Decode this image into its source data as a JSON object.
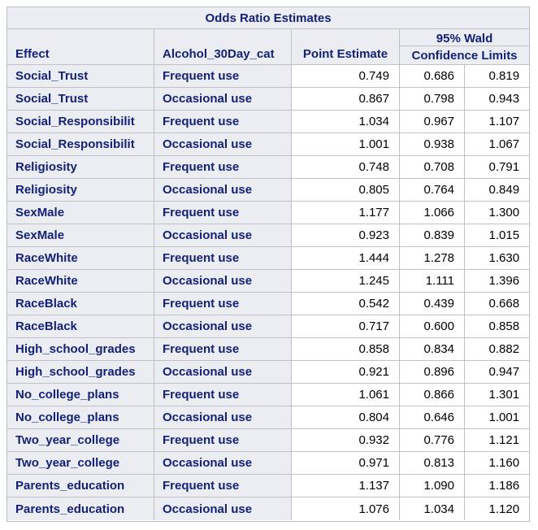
{
  "table": {
    "title": "Odds Ratio Estimates",
    "headers": {
      "effect": "Effect",
      "category": "Alcohol_30Day_cat",
      "point_estimate": "Point Estimate",
      "ci_top": "95% Wald",
      "ci_bottom": "Confidence Limits"
    },
    "rows": [
      {
        "effect": "Social_Trust",
        "category": "Frequent use",
        "estimate": "0.749",
        "lower": "0.686",
        "upper": "0.819"
      },
      {
        "effect": "Social_Trust",
        "category": "Occasional use",
        "estimate": "0.867",
        "lower": "0.798",
        "upper": "0.943"
      },
      {
        "effect": "Social_Responsibilit",
        "category": "Frequent use",
        "estimate": "1.034",
        "lower": "0.967",
        "upper": "1.107"
      },
      {
        "effect": "Social_Responsibilit",
        "category": "Occasional use",
        "estimate": "1.001",
        "lower": "0.938",
        "upper": "1.067"
      },
      {
        "effect": "Religiosity",
        "category": "Frequent use",
        "estimate": "0.748",
        "lower": "0.708",
        "upper": "0.791"
      },
      {
        "effect": "Religiosity",
        "category": "Occasional use",
        "estimate": "0.805",
        "lower": "0.764",
        "upper": "0.849"
      },
      {
        "effect": "SexMale",
        "category": "Frequent use",
        "estimate": "1.177",
        "lower": "1.066",
        "upper": "1.300"
      },
      {
        "effect": "SexMale",
        "category": "Occasional use",
        "estimate": "0.923",
        "lower": "0.839",
        "upper": "1.015"
      },
      {
        "effect": "RaceWhite",
        "category": "Frequent use",
        "estimate": "1.444",
        "lower": "1.278",
        "upper": "1.630"
      },
      {
        "effect": "RaceWhite",
        "category": "Occasional use",
        "estimate": "1.245",
        "lower": "1.111",
        "upper": "1.396"
      },
      {
        "effect": "RaceBlack",
        "category": "Frequent use",
        "estimate": "0.542",
        "lower": "0.439",
        "upper": "0.668"
      },
      {
        "effect": "RaceBlack",
        "category": "Occasional use",
        "estimate": "0.717",
        "lower": "0.600",
        "upper": "0.858"
      },
      {
        "effect": "High_school_grades",
        "category": "Frequent use",
        "estimate": "0.858",
        "lower": "0.834",
        "upper": "0.882"
      },
      {
        "effect": "High_school_grades",
        "category": "Occasional use",
        "estimate": "0.921",
        "lower": "0.896",
        "upper": "0.947"
      },
      {
        "effect": "No_college_plans",
        "category": "Frequent use",
        "estimate": "1.061",
        "lower": "0.866",
        "upper": "1.301"
      },
      {
        "effect": "No_college_plans",
        "category": "Occasional use",
        "estimate": "0.804",
        "lower": "0.646",
        "upper": "1.001"
      },
      {
        "effect": "Two_year_college",
        "category": "Frequent use",
        "estimate": "0.932",
        "lower": "0.776",
        "upper": "1.121"
      },
      {
        "effect": "Two_year_college",
        "category": "Occasional use",
        "estimate": "0.971",
        "lower": "0.813",
        "upper": "1.160"
      },
      {
        "effect": "Parents_education",
        "category": "Frequent use",
        "estimate": "1.137",
        "lower": "1.090",
        "upper": "1.186"
      },
      {
        "effect": "Parents_education",
        "category": "Occasional use",
        "estimate": "1.076",
        "lower": "1.034",
        "upper": "1.120"
      }
    ]
  }
}
